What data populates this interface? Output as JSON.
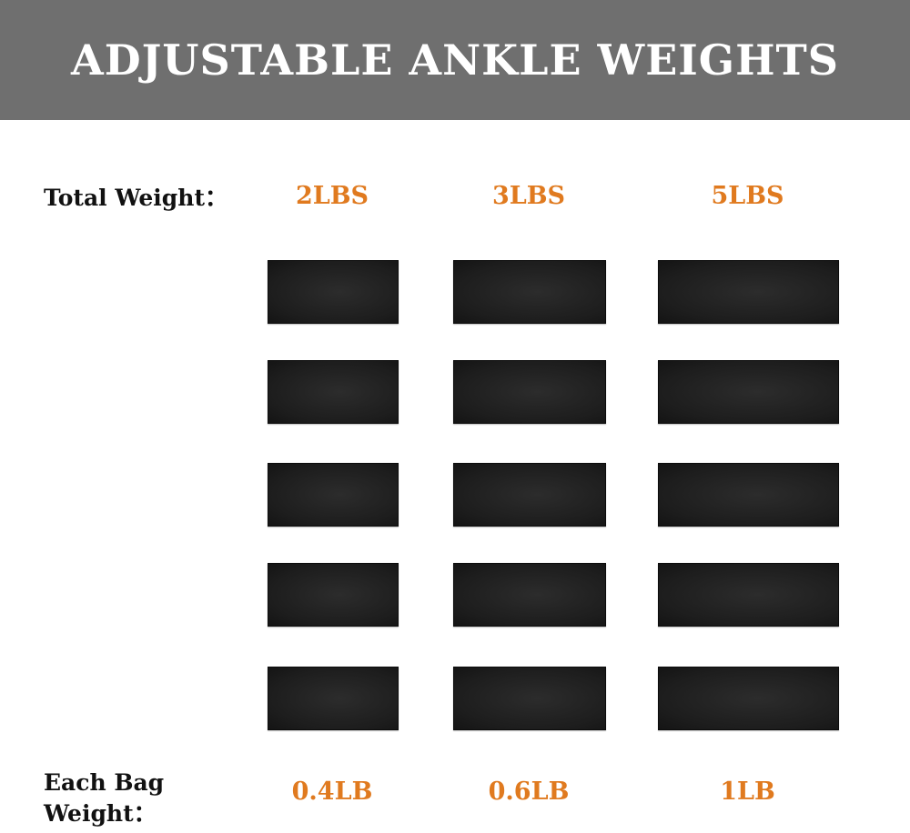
{
  "title": "ADJUSTABLE ANKLE WEIGHTS",
  "total_weight_label": "Total Weight：",
  "each_bag_label_line1": "Each Bag",
  "each_bag_label_line2": "Weight：",
  "accent_color": "#e07a1f",
  "header_color": "#6f6f6f",
  "options": [
    {
      "total": "2LBS",
      "each": "0.4LB",
      "bags": 5
    },
    {
      "total": "3LBS",
      "each": "0.6LB",
      "bags": 5
    },
    {
      "total": "5LBS",
      "each": "1LB",
      "bags": 5
    }
  ]
}
